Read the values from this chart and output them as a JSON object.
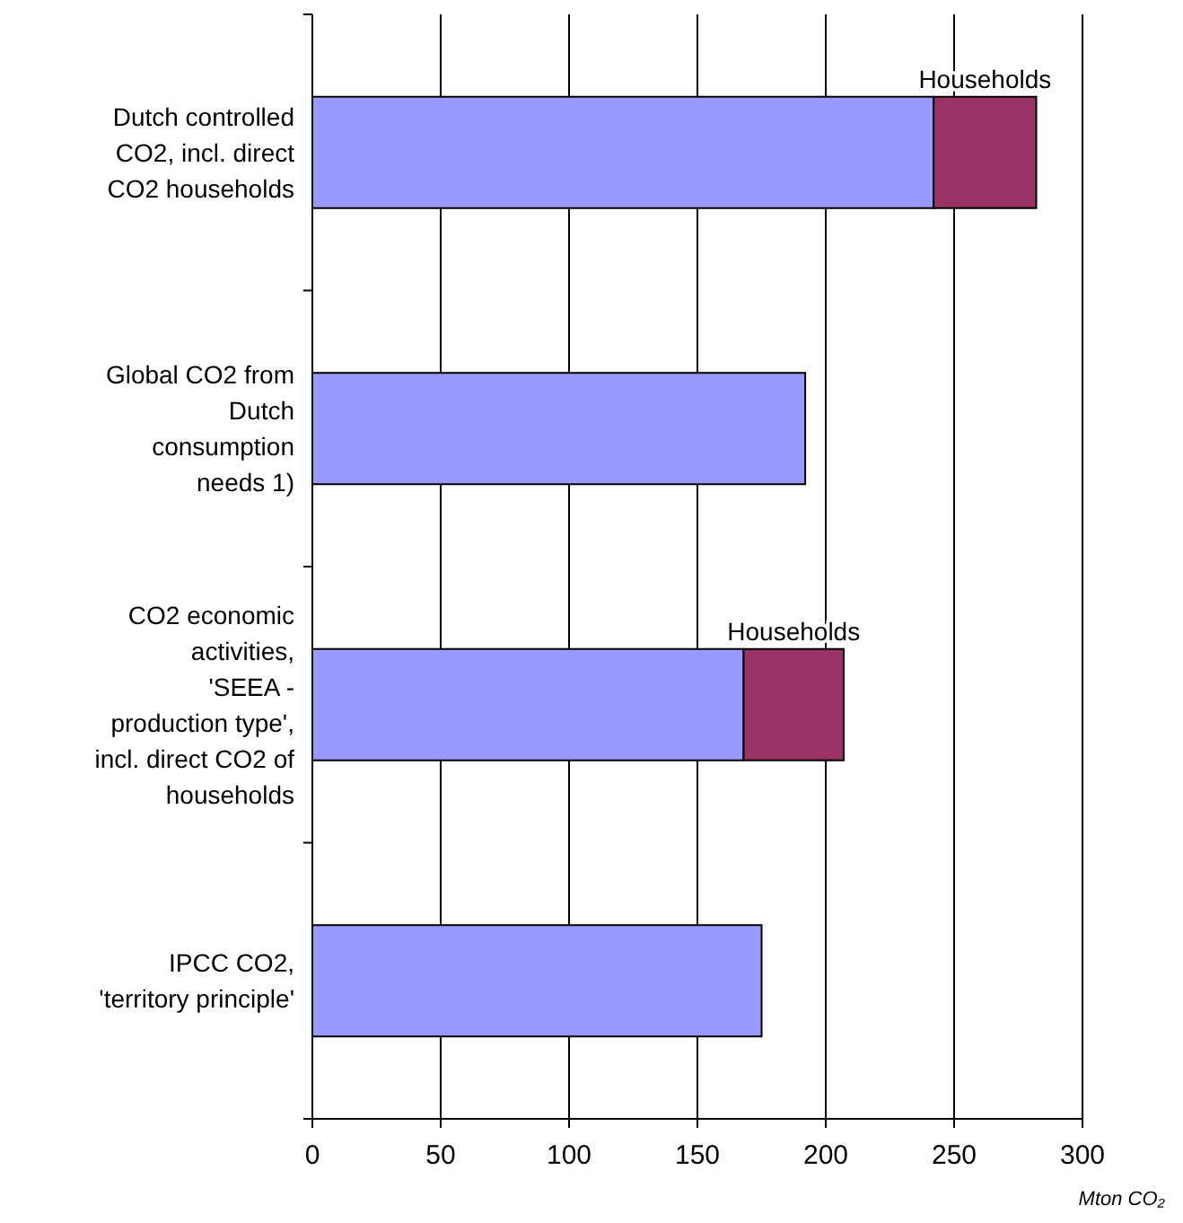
{
  "chart_data": {
    "type": "bar",
    "orientation": "horizontal",
    "stacked": true,
    "categories": [
      "Dutch controlled\nCO2, incl. direct\nCO2 households",
      "Global CO2 from\nDutch\nconsumption\nneeds 1)",
      "CO2 economic\nactivities,\n'SEEA -\nproduction type',\nincl. direct CO2 of\nhouseholds",
      "IPCC CO2,\n'territory principle'"
    ],
    "series": [
      {
        "color": "#9999ff",
        "values": [
          242,
          192,
          168,
          175
        ]
      },
      {
        "name": "Households",
        "color": "#993366",
        "values": [
          40,
          null,
          39,
          null
        ]
      }
    ],
    "xlim": [
      0,
      300
    ],
    "xticks": [
      0,
      50,
      100,
      150,
      200,
      250,
      300
    ],
    "xlabel": "Mton CO₂",
    "grid": "x"
  }
}
